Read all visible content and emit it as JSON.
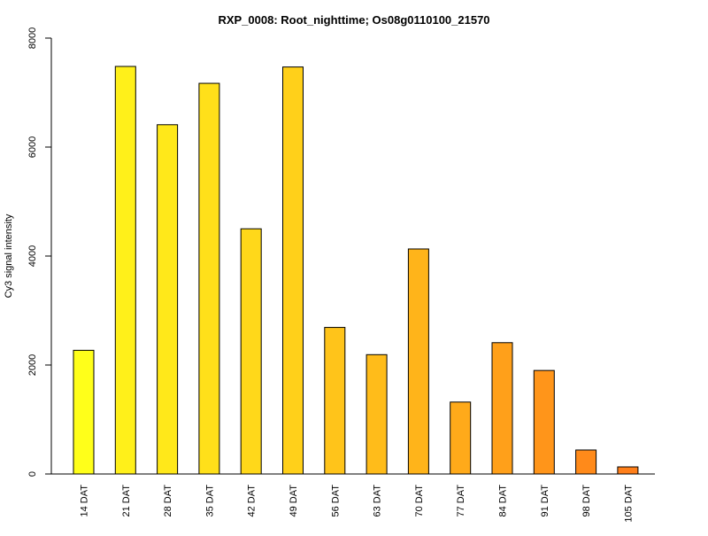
{
  "chart_data": {
    "type": "bar",
    "title": "RXP_0008: Root_nighttime; Os08g0110100_21570",
    "xlabel": "",
    "ylabel": "Cy3 signal intensity",
    "ylim": [
      0,
      8000
    ],
    "yticks": [
      "0",
      "2000",
      "4000",
      "6000",
      "8000"
    ],
    "categories": [
      "14 DAT",
      "21 DAT",
      "28 DAT",
      "35 DAT",
      "42 DAT",
      "49 DAT",
      "56 DAT",
      "63 DAT",
      "70 DAT",
      "77 DAT",
      "84 DAT",
      "91 DAT",
      "98 DAT",
      "105 DAT"
    ],
    "values": [
      2270,
      7480,
      6410,
      7170,
      4500,
      7470,
      2690,
      2190,
      4130,
      1320,
      2410,
      1900,
      440,
      130
    ],
    "colors": [
      "#FFFF1A",
      "#FFF01A",
      "#FFE81A",
      "#FFE01A",
      "#FFD81A",
      "#FFD01A",
      "#FFC41A",
      "#FFBC1A",
      "#FFB41A",
      "#FFAA1A",
      "#FFA01A",
      "#FF951A",
      "#FF8A1A",
      "#FF7F1A"
    ],
    "grid": false,
    "legend": "none"
  }
}
